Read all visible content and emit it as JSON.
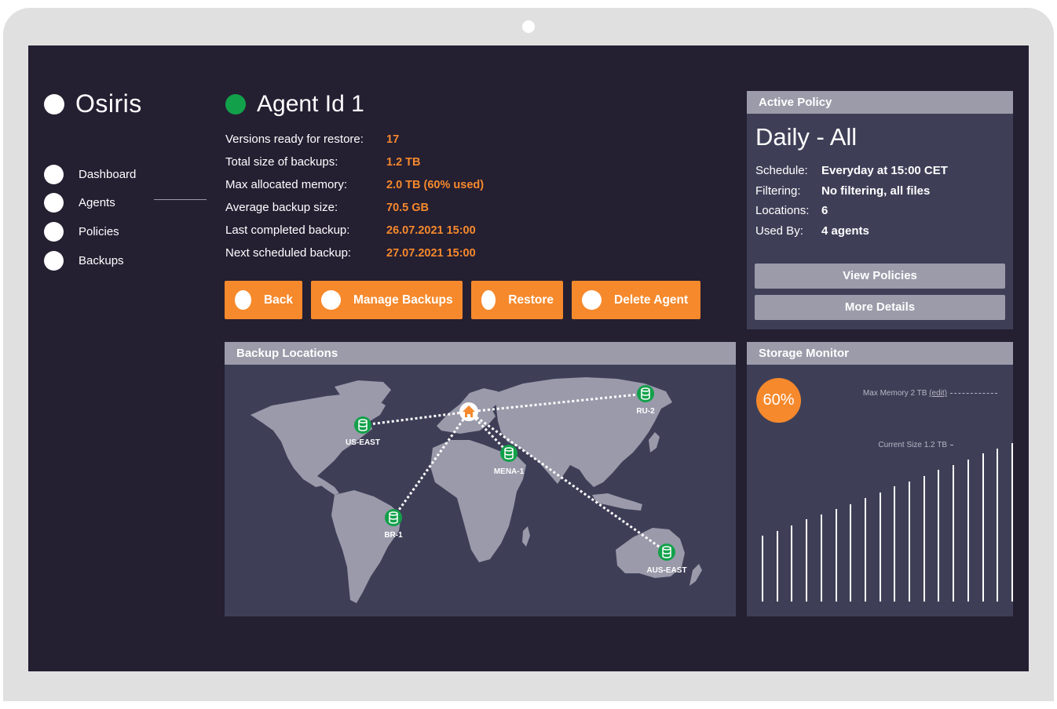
{
  "app": {
    "name": "Osiris"
  },
  "sidebar": {
    "items": [
      {
        "label": "Dashboard"
      },
      {
        "label": "Agents"
      },
      {
        "label": "Policies"
      },
      {
        "label": "Backups"
      }
    ],
    "active": "Agents"
  },
  "agent": {
    "title": "Agent Id 1",
    "status_color": "#12a14a",
    "stats": [
      {
        "label": "Versions ready for restore:",
        "value": "17"
      },
      {
        "label": "Total size of backups:",
        "value": "1.2 TB"
      },
      {
        "label": "Max allocated memory:",
        "value": "2.0 TB (60% used)"
      },
      {
        "label": "Average backup size:",
        "value": "70.5 GB"
      },
      {
        "label": "Last completed backup:",
        "value": "26.07.2021 15:00"
      },
      {
        "label": "Next scheduled backup:",
        "value": "27.07.2021 15:00"
      }
    ]
  },
  "actions": {
    "back": "Back",
    "manage_backups": "Manage Backups",
    "restore": "Restore",
    "delete_agent": "Delete Agent"
  },
  "policy": {
    "header": "Active Policy",
    "name": "Daily - All",
    "rows": [
      {
        "label": "Schedule:",
        "value": "Everyday at 15:00 CET"
      },
      {
        "label": "Filtering:",
        "value": "No filtering, all files"
      },
      {
        "label": "Locations:",
        "value": "6"
      },
      {
        "label": "Used By:",
        "value": "4 agents"
      }
    ],
    "view_policies": "View Policies",
    "more_details": "More Details"
  },
  "locations": {
    "header": "Backup Locations",
    "home_icon": "home-icon",
    "marker_icon": "database-icon",
    "markers": [
      {
        "label": "US-EAST"
      },
      {
        "label": "RU-2"
      },
      {
        "label": "MENA-1"
      },
      {
        "label": "BR-1"
      },
      {
        "label": "AUS-EAST"
      }
    ]
  },
  "storage": {
    "header": "Storage Monitor",
    "percent_label": "60%",
    "max_memory_label": "Max Memory 2 TB",
    "edit_label": "(edit)",
    "current_size_label": "Current Size 1.2 TB",
    "bar_levels": [
      0.4,
      0.43,
      0.46,
      0.5,
      0.53,
      0.56,
      0.59,
      0.63,
      0.66,
      0.7,
      0.73,
      0.76,
      0.8,
      0.83,
      0.86,
      0.9,
      0.93,
      0.96
    ]
  },
  "colors": {
    "accent": "#f6892c",
    "background": "#251f32",
    "panel": "#3e3f57",
    "panel_header": "#9b9baa",
    "status_ok": "#12a14a"
  }
}
